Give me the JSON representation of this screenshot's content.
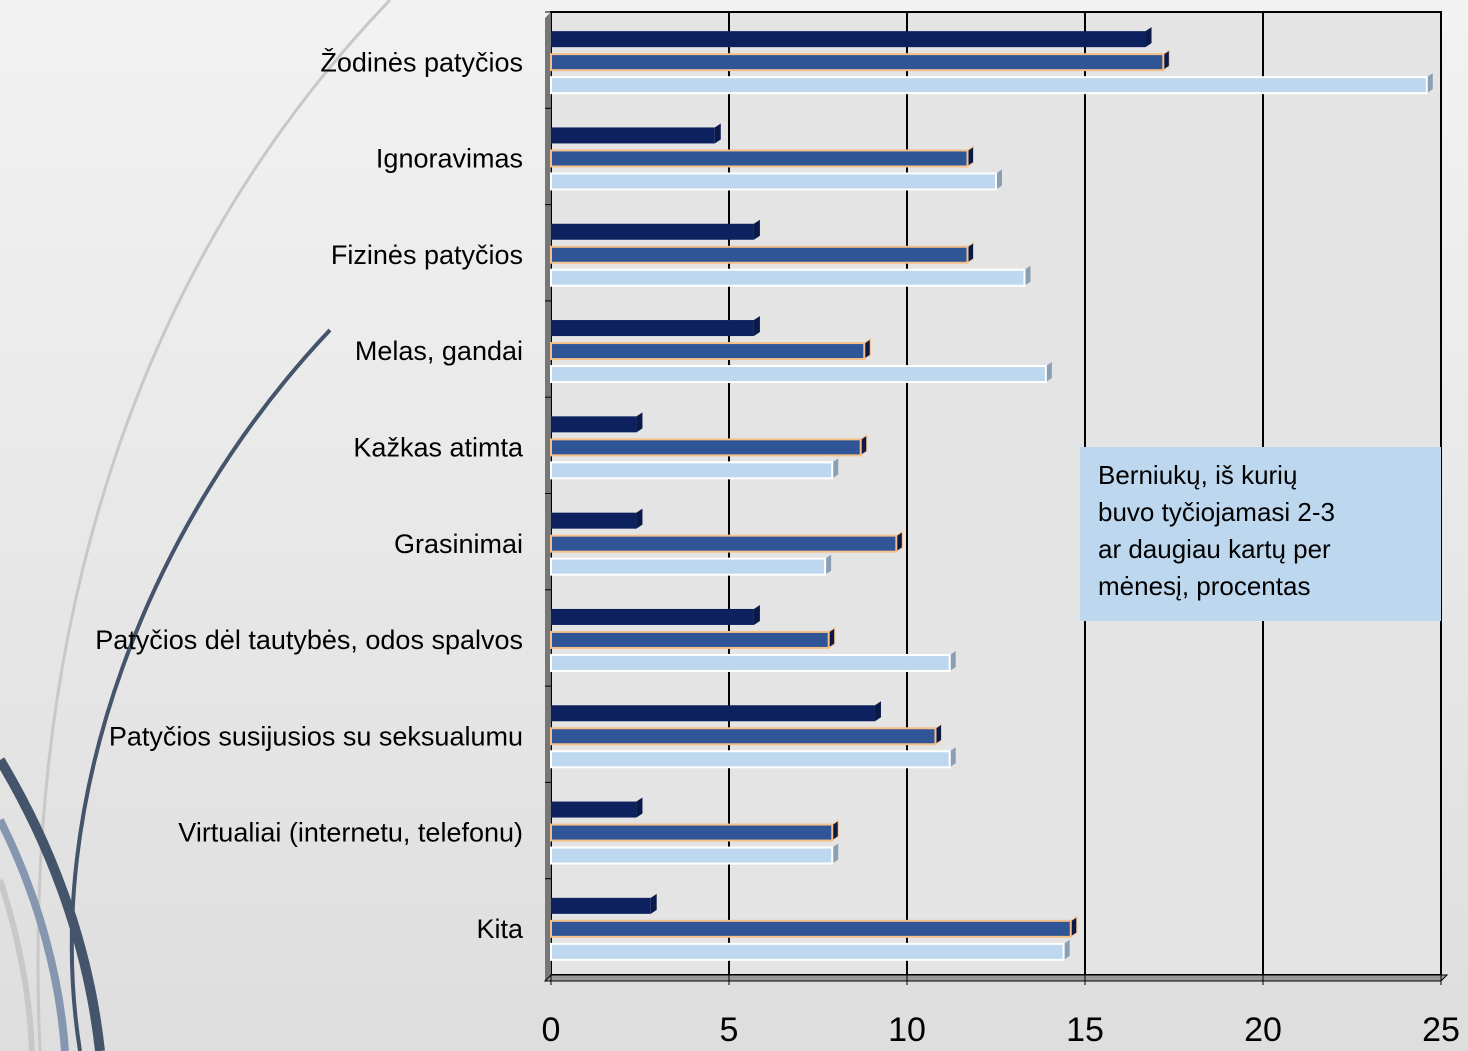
{
  "chart_data": {
    "type": "bar",
    "orientation": "horizontal",
    "categories": [
      "Žodinės patyčios",
      "Ignoravimas",
      "Fizinės patyčios",
      "Melas, gandai",
      "Kažkas atimta",
      "Grasinimai",
      "Patyčios dėl tautybės, odos spalvos",
      "Patyčios susijusios su seksualumu",
      "Virtualiai (internetu, telefonu)",
      "Kita"
    ],
    "series": [
      {
        "color": "#0c215e",
        "values": [
          16.7,
          4.6,
          5.7,
          5.7,
          2.4,
          2.4,
          5.7,
          9.1,
          2.4,
          2.8
        ]
      },
      {
        "color": "#2f5597",
        "values": [
          17.2,
          11.7,
          11.7,
          8.8,
          8.7,
          9.7,
          7.8,
          10.8,
          7.9,
          14.6
        ]
      },
      {
        "color": "#bdd7ee",
        "values": [
          24.6,
          12.5,
          13.3,
          13.9,
          7.9,
          7.7,
          11.2,
          11.2,
          7.9,
          14.4
        ]
      }
    ],
    "xlim": [
      0,
      25
    ],
    "xticks": [
      0,
      5,
      10,
      15,
      20,
      25
    ],
    "grid": true,
    "annotation": [
      "Berniukų, iš kurių",
      "buvo tyčiojamasi 2-3",
      "ar daugiau kartų per",
      "mėnesį, procentas"
    ]
  }
}
